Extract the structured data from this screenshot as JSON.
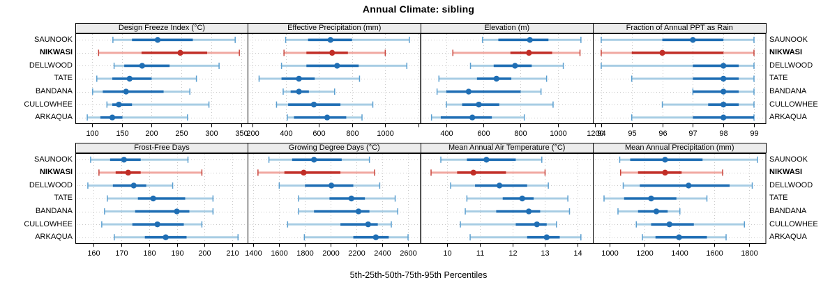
{
  "title": "Annual Climate: sibling",
  "footer_xlabel": "5th-25th-50th-75th-95th Percentiles",
  "colors": {
    "normal_dark": "#1f6eb4",
    "normal_light": "#a8cde4",
    "normal_cap": "#5b9fd0",
    "highlight_dark": "#c12e27",
    "highlight_light": "#f0a8a1",
    "highlight_cap": "#c8463d",
    "grid": "#c9c9c9",
    "strip_bg": "#ececec",
    "panel_border": "#000000"
  },
  "chart_data": {
    "type": "scatter",
    "mark": "horizontal-percentile-interval",
    "percentile_levels": [
      5,
      25,
      50,
      75,
      95
    ],
    "categories": [
      "SAUNOOK",
      "NIKWASI",
      "DELLWOOD",
      "TATE",
      "BANDANA",
      "CULLOWHEE",
      "ARKAQUA"
    ],
    "highlight": "NIKWASI",
    "legend_position": "none",
    "grid": "dotted",
    "panels": [
      {
        "title": "Design Freeze Index (°C)",
        "xlim": [
          72,
          362
        ],
        "xticks": [
          100,
          150,
          200,
          250,
          300,
          350
        ],
        "rows": [
          {
            "site": "SAUNOOK",
            "percentiles": [
              135,
              167,
              210,
              269,
              340
            ]
          },
          {
            "site": "NIKWASI",
            "percentiles": [
              111,
              183,
              248,
              293,
              347
            ]
          },
          {
            "site": "DELLWOOD",
            "percentiles": [
              137,
              154,
              184,
              230,
              313
            ]
          },
          {
            "site": "TATE",
            "percentiles": [
              108,
              134,
              163,
              200,
              275
            ]
          },
          {
            "site": "BANDANA",
            "percentiles": [
              101,
              118,
              157,
              220,
              264
            ]
          },
          {
            "site": "CULLOWHEE",
            "percentiles": [
              125,
              134,
              145,
              167,
              296
            ]
          },
          {
            "site": "ARKAQUA",
            "percentiles": [
              92,
              114,
              134,
              151,
              260
            ]
          }
        ]
      },
      {
        "title": "Effective Precipitation (mm)",
        "xlim": [
          175,
          1215
        ],
        "xticks": [
          200,
          400,
          600,
          800,
          1000,
          1200
        ],
        "xtick_labels": [
          "200",
          "400",
          "600",
          "800",
          "1000",
          ""
        ],
        "rows": [
          {
            "site": "SAUNOOK",
            "percentiles": [
              400,
              535,
              670,
              800,
              1145
            ]
          },
          {
            "site": "NIKWASI",
            "percentiles": [
              390,
              525,
              680,
              775,
              1000
            ]
          },
          {
            "site": "DELLWOOD",
            "percentiles": [
              375,
              525,
              710,
              840,
              1130
            ]
          },
          {
            "site": "TATE",
            "percentiles": [
              240,
              375,
              480,
              575,
              845
            ]
          },
          {
            "site": "BANDANA",
            "percentiles": [
              385,
              430,
              480,
              540,
              695
            ]
          },
          {
            "site": "CULLOWHEE",
            "percentiles": [
              345,
              415,
              570,
              730,
              925
            ]
          },
          {
            "site": "ARKAQUA",
            "percentiles": [
              410,
              450,
              650,
              765,
              860
            ]
          }
        ]
      },
      {
        "title": "Elevation (m)",
        "xlim": [
          265,
          1195
        ],
        "xticks": [
          400,
          600,
          800,
          1000,
          1200
        ],
        "rows": [
          {
            "site": "SAUNOOK",
            "percentiles": [
              595,
              680,
              850,
              950,
              1125
            ]
          },
          {
            "site": "NIKWASI",
            "percentiles": [
              435,
              745,
              845,
              970,
              1120
            ]
          },
          {
            "site": "DELLWOOD",
            "percentiles": [
              530,
              655,
              770,
              860,
              1030
            ]
          },
          {
            "site": "TATE",
            "percentiles": [
              360,
              565,
              670,
              750,
              940
            ]
          },
          {
            "site": "BANDANA",
            "percentiles": [
              350,
              400,
              520,
              800,
              910
            ]
          },
          {
            "site": "CULLOWHEE",
            "percentiles": [
              400,
              485,
              575,
              685,
              975
            ]
          },
          {
            "site": "ARKAQUA",
            "percentiles": [
              320,
              370,
              540,
              645,
              820
            ]
          }
        ]
      },
      {
        "title": "Fraction of Annual PPT as Rain",
        "xlim": [
          93.75,
          99.4
        ],
        "xticks": [
          94,
          95,
          96,
          97,
          98,
          99
        ],
        "rows": [
          {
            "site": "SAUNOOK",
            "percentiles": [
              94,
              96,
              97,
              98,
              99
            ]
          },
          {
            "site": "NIKWASI",
            "percentiles": [
              94,
              95,
              96,
              98,
              99
            ]
          },
          {
            "site": "DELLWOOD",
            "percentiles": [
              94,
              97,
              98,
              98.5,
              99
            ]
          },
          {
            "site": "TATE",
            "percentiles": [
              95,
              97,
              98,
              98.5,
              99
            ]
          },
          {
            "site": "BANDANA",
            "percentiles": [
              97,
              97,
              98,
              98.5,
              99
            ]
          },
          {
            "site": "CULLOWHEE",
            "percentiles": [
              96,
              97.5,
              98,
              98.5,
              99
            ]
          },
          {
            "site": "ARKAQUA",
            "percentiles": [
              95,
              97,
              98,
              99,
              99
            ]
          }
        ]
      },
      {
        "title": "Frost-Free Days",
        "xlim": [
          153.5,
          215.7
        ],
        "xticks": [
          160,
          170,
          180,
          190,
          200,
          210
        ],
        "rows": [
          {
            "site": "SAUNOOK",
            "percentiles": [
              159,
              166,
              171,
              177,
              194
            ]
          },
          {
            "site": "NIKWASI",
            "percentiles": [
              162,
              168,
              172.5,
              177,
              199
            ]
          },
          {
            "site": "DELLWOOD",
            "percentiles": [
              158,
              167,
              174.5,
              179,
              188.5
            ]
          },
          {
            "site": "TATE",
            "percentiles": [
              165,
              176,
              181.5,
              193,
              203
            ]
          },
          {
            "site": "BANDANA",
            "percentiles": [
              164,
              175,
              190,
              194.5,
              203
            ]
          },
          {
            "site": "CULLOWHEE",
            "percentiles": [
              163,
              174,
              183,
              192.5,
              199
            ]
          },
          {
            "site": "ARKAQUA",
            "percentiles": [
              167.5,
              178.5,
              186,
              193.5,
              212
            ]
          }
        ]
      },
      {
        "title": "Growing Degree Days (°C)",
        "xlim": [
          1360,
          2700
        ],
        "xticks": [
          1400,
          1600,
          1800,
          2000,
          2200,
          2400,
          2600
        ],
        "rows": [
          {
            "site": "SAUNOOK",
            "percentiles": [
              1520,
              1700,
              1870,
              2085,
              2300
            ]
          },
          {
            "site": "NIKWASI",
            "percentiles": [
              1435,
              1640,
              1790,
              2075,
              2340
            ]
          },
          {
            "site": "DELLWOOD",
            "percentiles": [
              1600,
              1800,
              2005,
              2175,
              2380
            ]
          },
          {
            "site": "TATE",
            "percentiles": [
              1750,
              1990,
              2160,
              2265,
              2500
            ]
          },
          {
            "site": "BANDANA",
            "percentiles": [
              1750,
              1870,
              2215,
              2300,
              2520
            ]
          },
          {
            "site": "CULLOWHEE",
            "percentiles": [
              1665,
              2075,
              2290,
              2365,
              2470
            ]
          },
          {
            "site": "ARKAQUA",
            "percentiles": [
              1795,
              2175,
              2350,
              2450,
              2600
            ]
          }
        ]
      },
      {
        "title": "Mean Annual Air Temperature (°C)",
        "xlim": [
          9.2,
          14.5
        ],
        "xticks": [
          10,
          11,
          12,
          13,
          14
        ],
        "rows": [
          {
            "site": "SAUNOOK",
            "percentiles": [
              9.8,
              10.6,
              11.2,
              12.1,
              12.9
            ]
          },
          {
            "site": "NIKWASI",
            "percentiles": [
              9.5,
              10.3,
              10.8,
              11.8,
              13.0
            ]
          },
          {
            "site": "DELLWOOD",
            "percentiles": [
              10.1,
              10.85,
              11.6,
              12.45,
              13.1
            ]
          },
          {
            "site": "TATE",
            "percentiles": [
              10.6,
              11.7,
              12.3,
              12.65,
              13.7
            ]
          },
          {
            "site": "BANDANA",
            "percentiles": [
              10.55,
              11.5,
              12.5,
              12.85,
              13.75
            ]
          },
          {
            "site": "CULLOWHEE",
            "percentiles": [
              10.4,
              12.1,
              12.75,
              13.05,
              13.35
            ]
          },
          {
            "site": "ARKAQUA",
            "percentiles": [
              10.7,
              12.45,
              13.05,
              13.45,
              14.1
            ]
          }
        ]
      },
      {
        "title": "Mean Annual Precipitation (mm)",
        "xlim": [
          910,
          1900
        ],
        "xticks": [
          1000,
          1200,
          1400,
          1600,
          1800
        ],
        "rows": [
          {
            "site": "SAUNOOK",
            "percentiles": [
              1060,
              1120,
              1320,
              1535,
              1850
            ]
          },
          {
            "site": "NIKWASI",
            "percentiles": [
              1065,
              1165,
              1320,
              1415,
              1650
            ]
          },
          {
            "site": "DELLWOOD",
            "percentiles": [
              1080,
              1175,
              1455,
              1690,
              1820
            ]
          },
          {
            "site": "TATE",
            "percentiles": [
              970,
              1085,
              1240,
              1385,
              1560
            ]
          },
          {
            "site": "BANDANA",
            "percentiles": [
              1050,
              1165,
              1270,
              1335,
              1405
            ]
          },
          {
            "site": "CULLOWHEE",
            "percentiles": [
              1155,
              1240,
              1345,
              1485,
              1775
            ]
          },
          {
            "site": "ARKAQUA",
            "percentiles": [
              1190,
              1265,
              1400,
              1560,
              1670
            ]
          }
        ]
      }
    ]
  }
}
